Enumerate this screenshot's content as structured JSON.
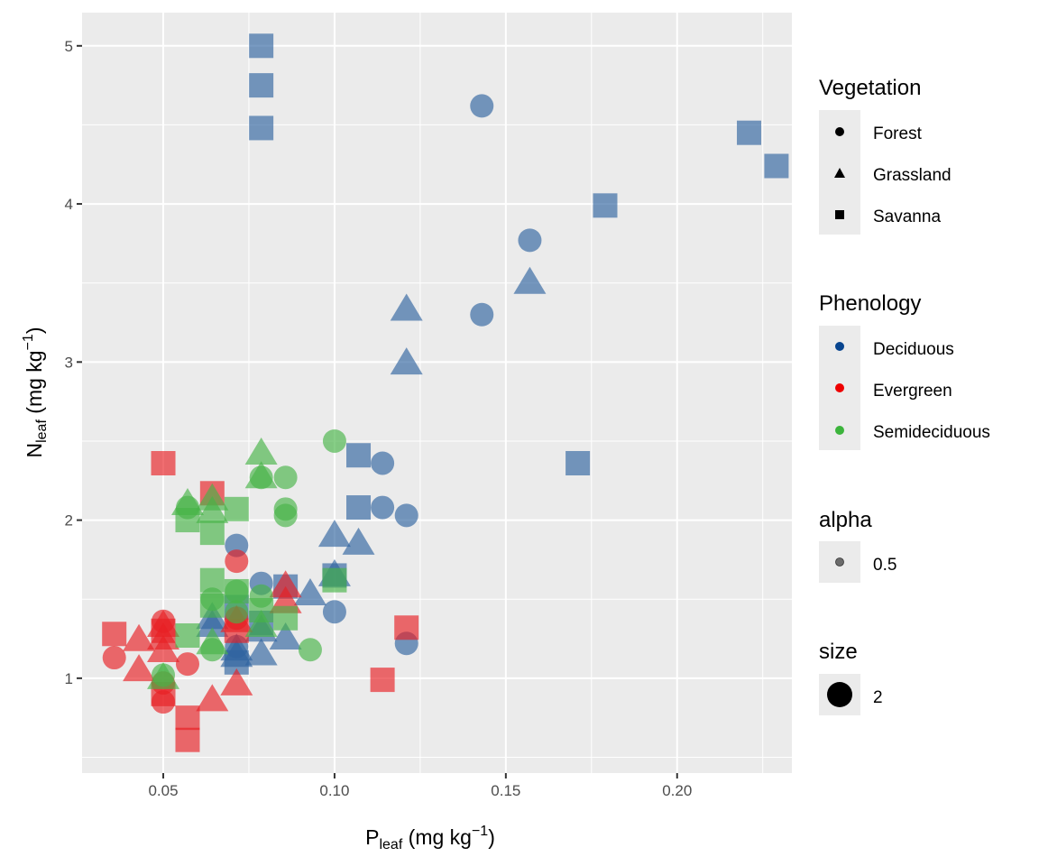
{
  "chart_data": {
    "type": "scatter",
    "title": "",
    "xlabel": {
      "main": "P",
      "sub": "leaf",
      "units_prefix": " (mg kg",
      "sup": "−1",
      "units_suffix": ")"
    },
    "ylabel": {
      "main": "N",
      "sub": "leaf",
      "units_prefix": " (mg kg",
      "sup": "−1",
      "units_suffix": ")"
    },
    "xlim": [
      0.0263,
      0.2335
    ],
    "ylim": [
      0.4,
      5.21
    ],
    "xticks": [
      0.05,
      0.1,
      0.15,
      0.2
    ],
    "xtick_labels": [
      "0.05",
      "0.10",
      "0.15",
      "0.20"
    ],
    "yticks": [
      1,
      2,
      3,
      4,
      5
    ],
    "ytick_labels": [
      "1",
      "2",
      "3",
      "4",
      "5"
    ],
    "grid": true,
    "legend_position": "right",
    "legends": [
      {
        "title": "Vegetation",
        "items": [
          {
            "label": "Forest",
            "shape": "circle"
          },
          {
            "label": "Grassland",
            "shape": "triangle"
          },
          {
            "label": "Savanna",
            "shape": "square"
          }
        ]
      },
      {
        "title": "Phenology",
        "items": [
          {
            "label": "Deciduous",
            "color": "#08458f"
          },
          {
            "label": "Evergreen",
            "color": "#ee0000"
          },
          {
            "label": "Semideciduous",
            "color": "#3cb43c"
          }
        ]
      },
      {
        "title": "alpha",
        "items": [
          {
            "label": "0.5"
          }
        ]
      },
      {
        "title": "size",
        "items": [
          {
            "label": "2"
          }
        ]
      }
    ],
    "colors": {
      "Deciduous": "#2f64a0",
      "Evergreen": "#e81e23",
      "Semideciduous": "#47b447",
      "panel": "#ebebeb",
      "grid": "#ffffff"
    },
    "series": [
      {
        "name": "Deciduous",
        "vegetation": "Savanna",
        "points": [
          [
            0.0786,
            5.0
          ],
          [
            0.0786,
            4.75
          ],
          [
            0.0786,
            4.48
          ],
          [
            0.221,
            4.45
          ],
          [
            0.229,
            4.24
          ],
          [
            0.179,
            3.99
          ],
          [
            0.171,
            2.36
          ],
          [
            0.107,
            2.41
          ],
          [
            0.107,
            2.08
          ],
          [
            0.1,
            1.65
          ],
          [
            0.0857,
            1.58
          ],
          [
            0.0714,
            1.1
          ],
          [
            0.0786,
            1.35
          ],
          [
            0.0714,
            1.45
          ]
        ]
      },
      {
        "name": "Deciduous",
        "vegetation": "Forest",
        "points": [
          [
            0.143,
            4.62
          ],
          [
            0.157,
            3.77
          ],
          [
            0.143,
            3.3
          ],
          [
            0.114,
            2.36
          ],
          [
            0.114,
            2.08
          ],
          [
            0.121,
            2.03
          ],
          [
            0.0714,
            1.84
          ],
          [
            0.1,
            1.42
          ],
          [
            0.121,
            1.22
          ],
          [
            0.0786,
            1.6
          ],
          [
            0.0714,
            1.2
          ]
        ]
      },
      {
        "name": "Deciduous",
        "vegetation": "Grassland",
        "points": [
          [
            0.121,
            3.33
          ],
          [
            0.121,
            2.99
          ],
          [
            0.157,
            3.5
          ],
          [
            0.1,
            1.9
          ],
          [
            0.107,
            1.85
          ],
          [
            0.1,
            1.65
          ],
          [
            0.0929,
            1.53
          ],
          [
            0.0857,
            1.25
          ],
          [
            0.0786,
            1.15
          ],
          [
            0.0714,
            1.18
          ],
          [
            0.0643,
            1.38
          ],
          [
            0.0643,
            1.33
          ],
          [
            0.0786,
            1.3
          ],
          [
            0.0714,
            1.14
          ]
        ]
      },
      {
        "name": "Evergreen",
        "vegetation": "Savanna",
        "points": [
          [
            0.05,
            2.36
          ],
          [
            0.0643,
            2.17
          ],
          [
            0.0357,
            1.28
          ],
          [
            0.05,
            1.3
          ],
          [
            0.0571,
            0.75
          ],
          [
            0.0571,
            0.61
          ],
          [
            0.121,
            1.32
          ],
          [
            0.114,
            0.99
          ],
          [
            0.05,
            0.9
          ],
          [
            0.0714,
            1.3
          ]
        ]
      },
      {
        "name": "Evergreen",
        "vegetation": "Forest",
        "points": [
          [
            0.0357,
            1.13
          ],
          [
            0.05,
            1.36
          ],
          [
            0.0571,
            1.09
          ],
          [
            0.05,
            0.97
          ],
          [
            0.05,
            0.85
          ],
          [
            0.0714,
            1.74
          ],
          [
            0.0714,
            1.38
          ]
        ]
      },
      {
        "name": "Evergreen",
        "vegetation": "Grassland",
        "points": [
          [
            0.0429,
            1.24
          ],
          [
            0.0429,
            1.05
          ],
          [
            0.05,
            1.33
          ],
          [
            0.05,
            1.25
          ],
          [
            0.05,
            1.17
          ],
          [
            0.0643,
            0.86
          ],
          [
            0.0714,
            0.96
          ],
          [
            0.0857,
            1.58
          ],
          [
            0.0857,
            1.48
          ],
          [
            0.0714,
            1.36
          ]
        ]
      },
      {
        "name": "Semideciduous",
        "vegetation": "Savanna",
        "points": [
          [
            0.0571,
            1.27
          ],
          [
            0.0643,
            1.62
          ],
          [
            0.0643,
            1.46
          ],
          [
            0.0714,
            2.07
          ],
          [
            0.0571,
            2.0
          ],
          [
            0.0643,
            1.92
          ],
          [
            0.0786,
            1.43
          ],
          [
            0.0857,
            1.38
          ],
          [
            0.1,
            1.62
          ],
          [
            0.0714,
            1.55
          ]
        ]
      },
      {
        "name": "Semideciduous",
        "vegetation": "Forest",
        "points": [
          [
            0.1,
            2.5
          ],
          [
            0.0857,
            2.27
          ],
          [
            0.0857,
            2.07
          ],
          [
            0.0857,
            2.03
          ],
          [
            0.0786,
            2.27
          ],
          [
            0.0571,
            2.08
          ],
          [
            0.0643,
            1.5
          ],
          [
            0.0643,
            1.18
          ],
          [
            0.0714,
            1.55
          ],
          [
            0.0714,
            1.42
          ],
          [
            0.0929,
            1.18
          ],
          [
            0.05,
            1.02
          ],
          [
            0.0786,
            1.52
          ]
        ]
      },
      {
        "name": "Semideciduous",
        "vegetation": "Grassland",
        "points": [
          [
            0.0786,
            2.42
          ],
          [
            0.0786,
            2.27
          ],
          [
            0.0571,
            2.1
          ],
          [
            0.0643,
            2.13
          ],
          [
            0.0643,
            2.05
          ],
          [
            0.05,
            1.0
          ],
          [
            0.0786,
            1.33
          ],
          [
            0.0643,
            1.22
          ]
        ]
      }
    ]
  }
}
